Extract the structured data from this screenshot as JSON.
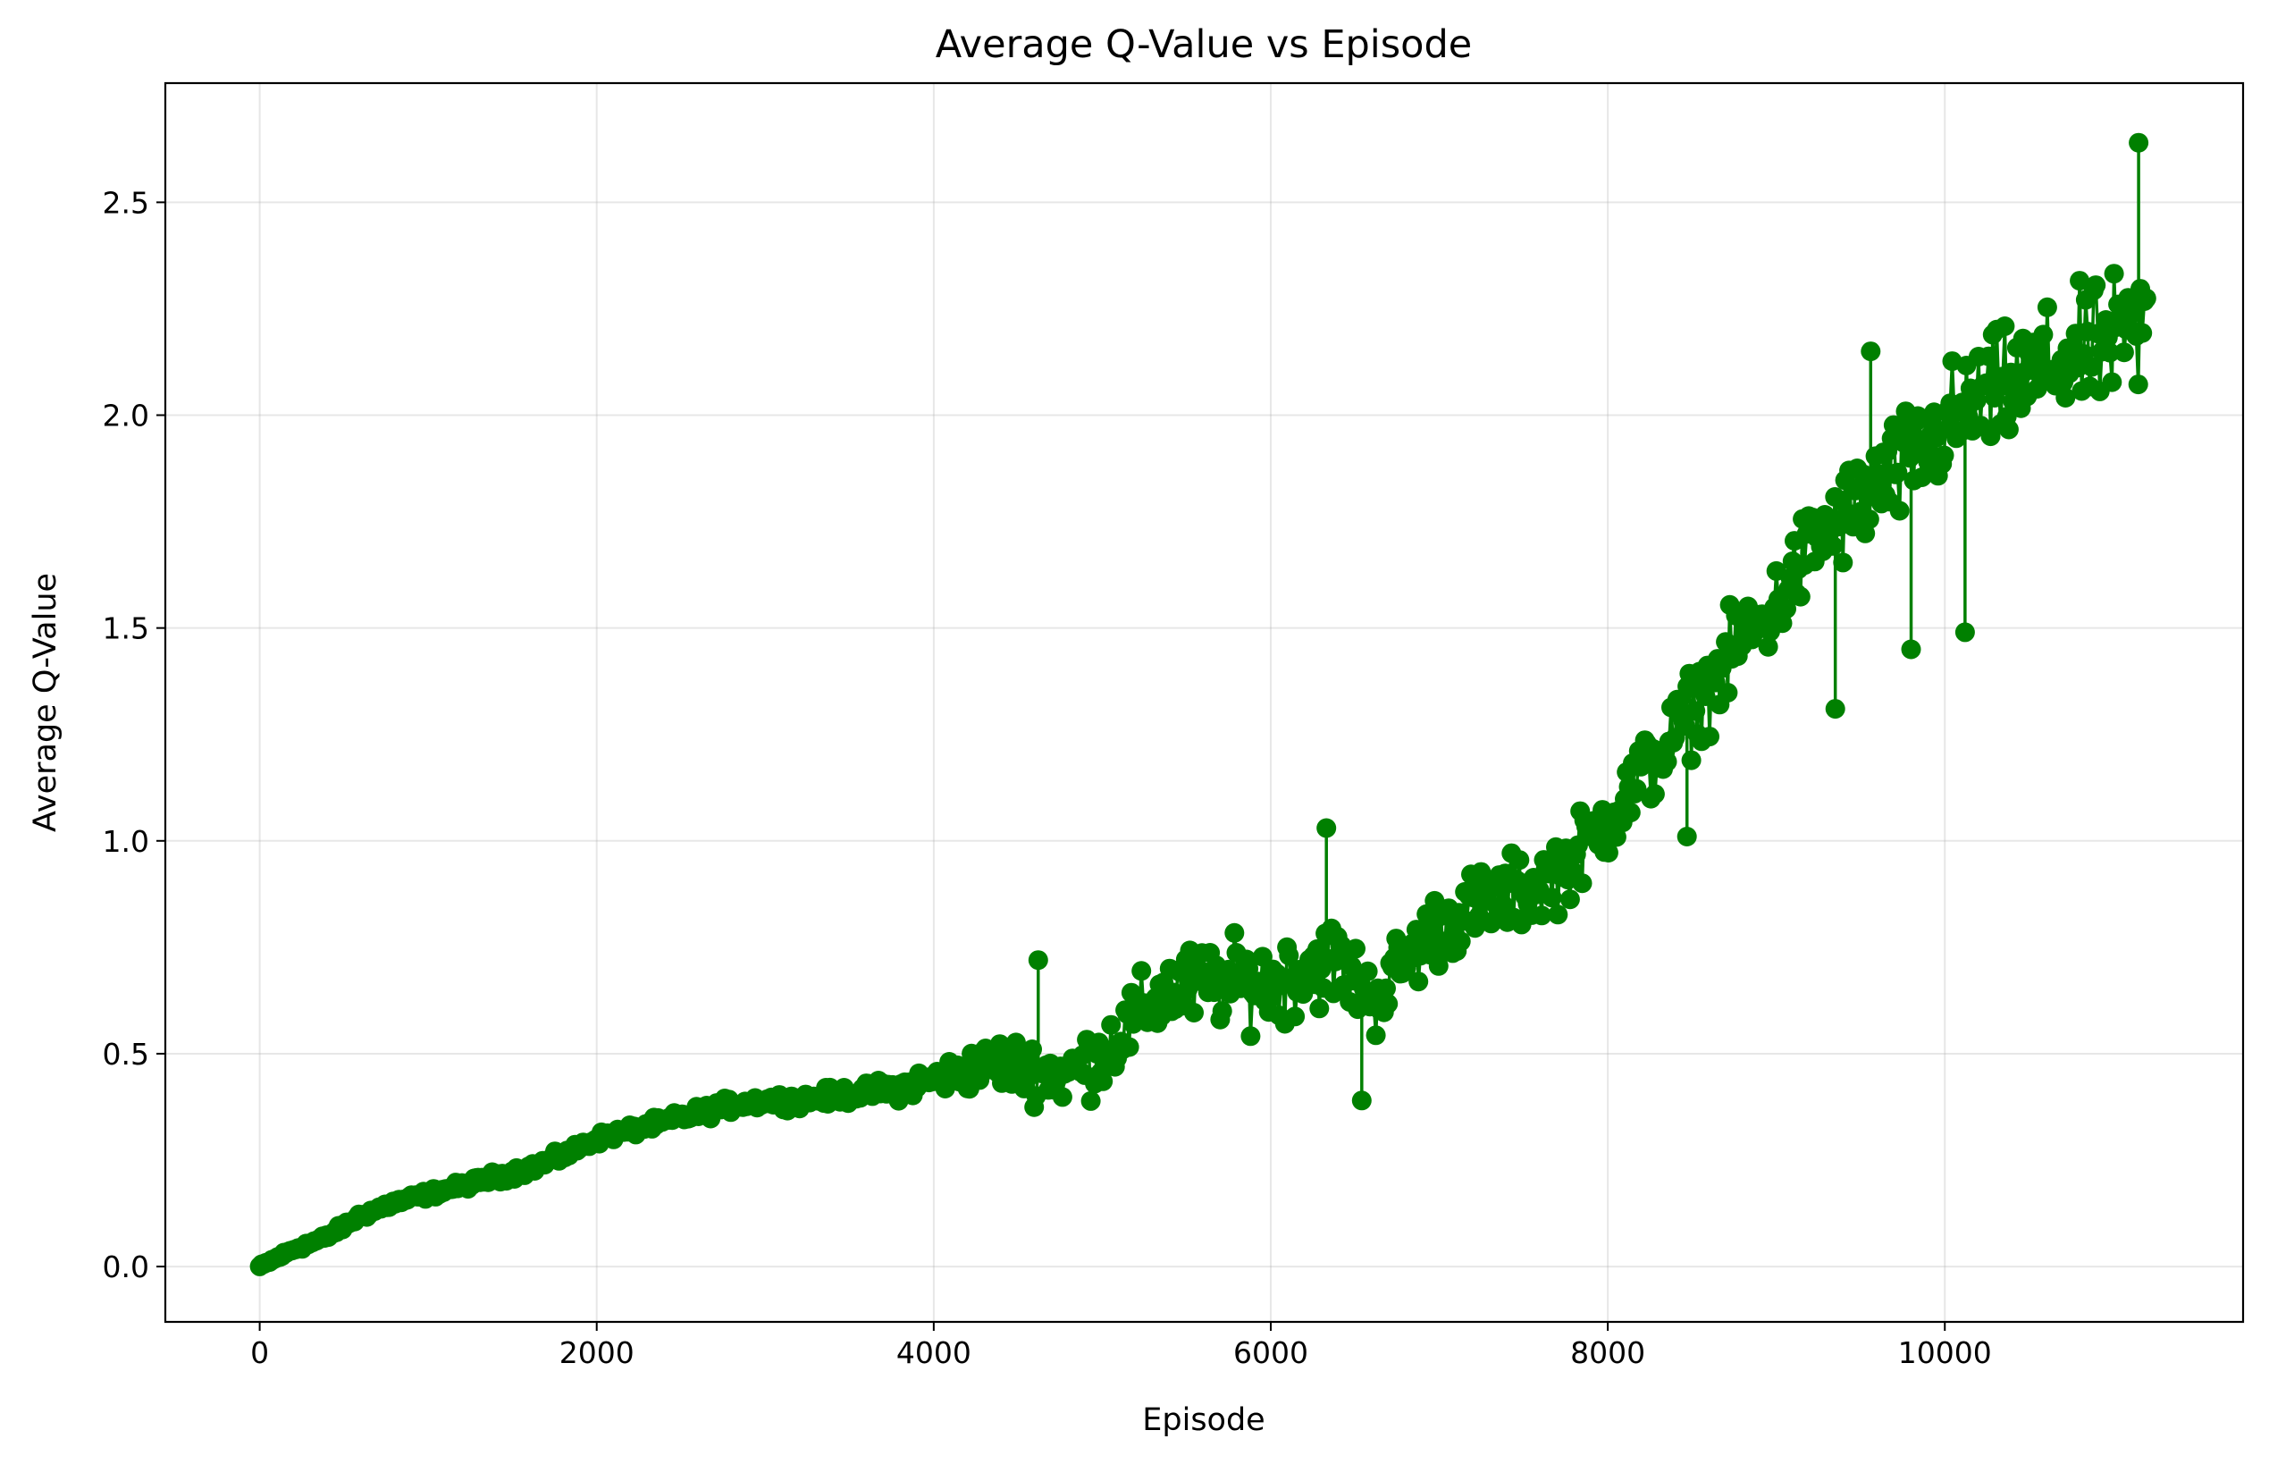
{
  "chart_data": {
    "type": "line",
    "title": "Average Q-Value vs Episode",
    "xlabel": "Episode",
    "ylabel": "Average Q-Value",
    "xlim": [
      -560,
      11770
    ],
    "ylim": [
      -0.13,
      2.78
    ],
    "xticks": [
      0,
      2000,
      4000,
      6000,
      8000,
      10000
    ],
    "xtick_labels": [
      "0",
      "2000",
      "4000",
      "6000",
      "8000",
      "10000"
    ],
    "yticks": [
      0.0,
      0.5,
      1.0,
      1.5,
      2.0,
      2.5
    ],
    "ytick_labels": [
      "0.0",
      "0.5",
      "1.0",
      "1.5",
      "2.0",
      "2.5"
    ],
    "grid": true,
    "marker": "circle",
    "color": "#008000",
    "series": [
      {
        "x": [
          0,
          200,
          400,
          600,
          800,
          1000,
          1200,
          1400,
          1600,
          1800,
          2000,
          2200,
          2400,
          2600,
          2800,
          3000,
          3200,
          3400,
          3600,
          3800,
          4000,
          4200,
          4400,
          4600,
          4800,
          5000,
          5200,
          5400,
          5600,
          5800,
          6000,
          6200,
          6400,
          6600,
          6800,
          7000,
          7200,
          7400,
          7600,
          7800,
          8000,
          8200,
          8400,
          8600,
          8800,
          9000,
          9200,
          9400,
          9600,
          9800,
          10000,
          10200,
          10400,
          10600,
          10800,
          11000,
          11200
        ],
        "y": [
          0.0,
          0.04,
          0.07,
          0.12,
          0.15,
          0.17,
          0.19,
          0.21,
          0.23,
          0.26,
          0.3,
          0.32,
          0.34,
          0.36,
          0.38,
          0.39,
          0.39,
          0.4,
          0.41,
          0.42,
          0.44,
          0.46,
          0.48,
          0.46,
          0.45,
          0.5,
          0.58,
          0.65,
          0.66,
          0.67,
          0.66,
          0.7,
          0.72,
          0.62,
          0.72,
          0.8,
          0.84,
          0.87,
          0.9,
          0.96,
          1.05,
          1.15,
          1.25,
          1.36,
          1.47,
          1.55,
          1.69,
          1.76,
          1.83,
          1.89,
          1.97,
          2.03,
          2.07,
          2.11,
          2.14,
          2.17,
          2.2
        ],
        "spread": [
          0.005,
          0.01,
          0.01,
          0.015,
          0.015,
          0.015,
          0.015,
          0.02,
          0.02,
          0.02,
          0.02,
          0.02,
          0.02,
          0.025,
          0.025,
          0.025,
          0.025,
          0.03,
          0.03,
          0.04,
          0.05,
          0.07,
          0.09,
          0.1,
          0.11,
          0.12,
          0.13,
          0.14,
          0.14,
          0.14,
          0.15,
          0.15,
          0.14,
          0.13,
          0.13,
          0.13,
          0.13,
          0.13,
          0.13,
          0.13,
          0.13,
          0.14,
          0.14,
          0.14,
          0.15,
          0.15,
          0.16,
          0.17,
          0.18,
          0.19,
          0.2,
          0.2,
          0.2,
          0.2,
          0.21,
          0.22,
          0.22
        ],
        "highlights": [
          {
            "x": 4620,
            "y": 0.72
          },
          {
            "x": 6330,
            "y": 1.03
          },
          {
            "x": 6540,
            "y": 0.39
          },
          {
            "x": 8470,
            "y": 1.01
          },
          {
            "x": 9350,
            "y": 1.31
          },
          {
            "x": 9560,
            "y": 2.15
          },
          {
            "x": 9800,
            "y": 1.45
          },
          {
            "x": 10120,
            "y": 1.49
          },
          {
            "x": 11150,
            "y": 2.64
          }
        ]
      }
    ]
  }
}
